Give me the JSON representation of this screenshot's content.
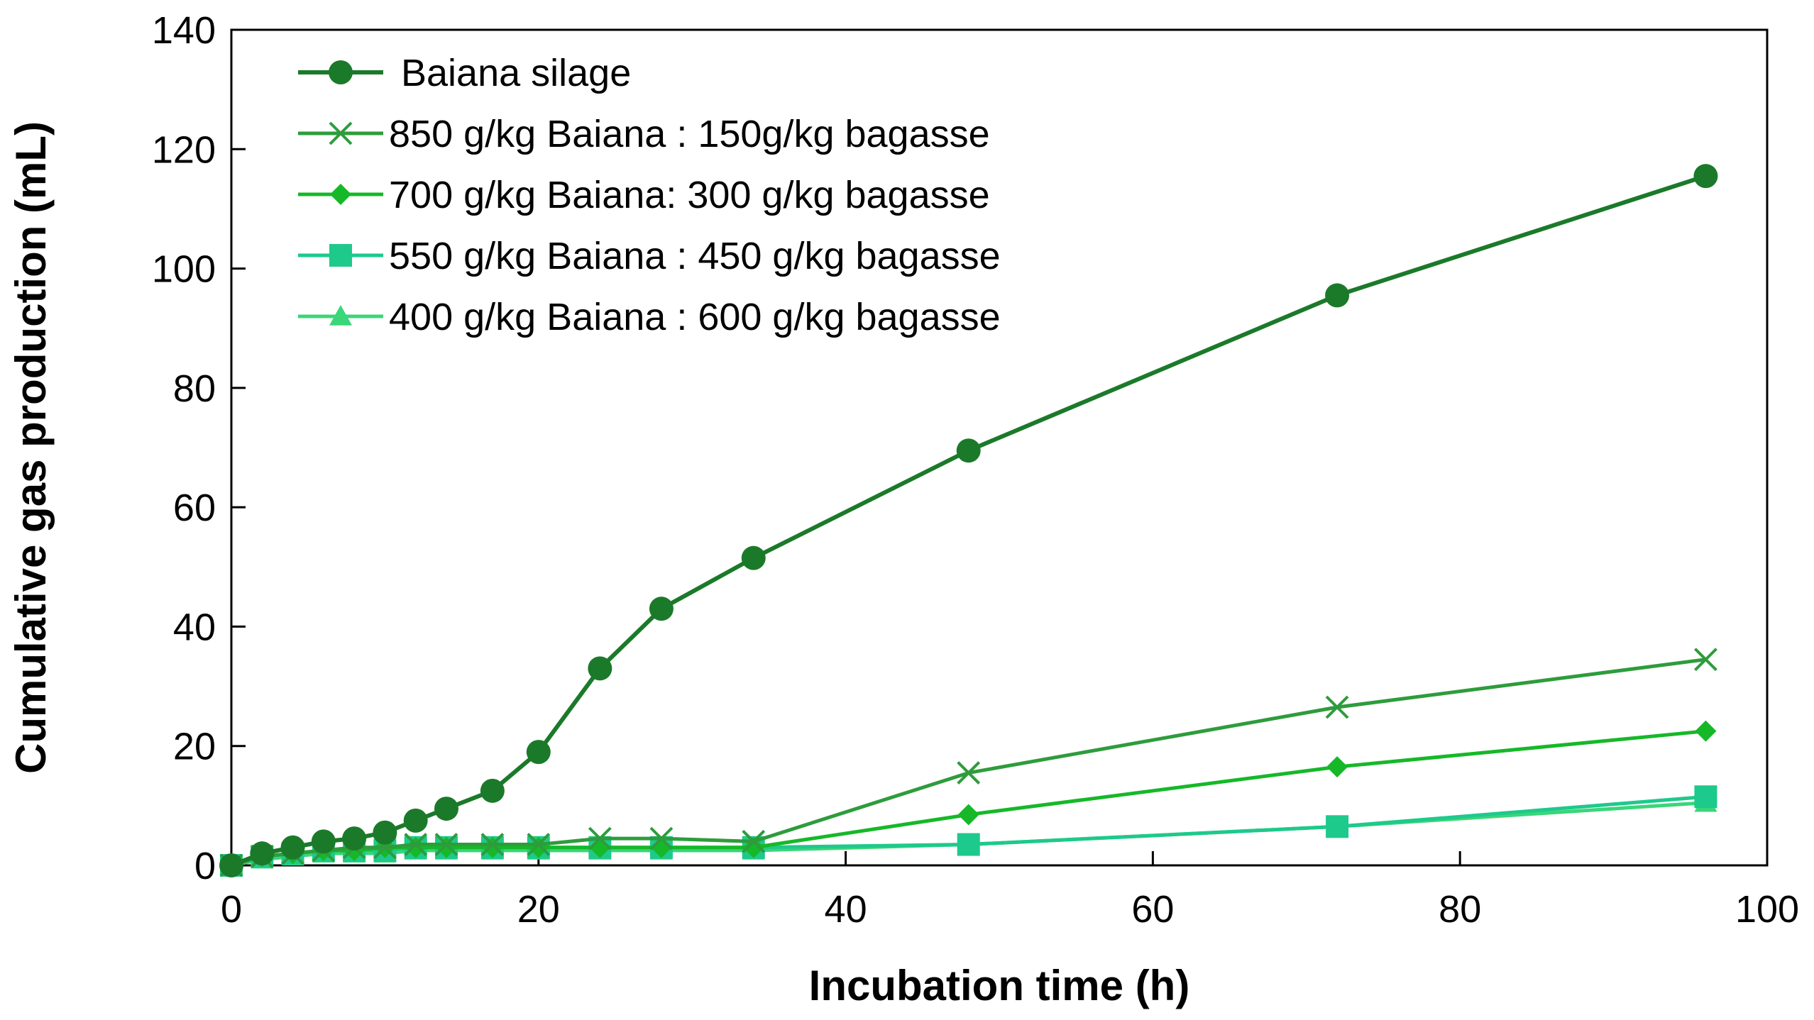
{
  "chart_data": {
    "type": "line",
    "title": "",
    "xlabel": "Incubation time (h)",
    "ylabel": "Cumulative gas production (mL)",
    "xlim": [
      0,
      100
    ],
    "ylim": [
      0,
      140
    ],
    "xticks": [
      "0",
      "20",
      "40",
      "60",
      "80",
      "100"
    ],
    "yticks": [
      "0",
      "20",
      "40",
      "60",
      "80",
      "100",
      "120",
      "140"
    ],
    "grid": false,
    "legend_position": "top-left",
    "series": [
      {
        "name": "Baiana silage",
        "color": "#1b7a2a",
        "marker": "circle",
        "x": [
          0,
          2,
          4,
          6,
          8,
          10,
          12,
          14,
          17,
          20,
          24,
          28,
          34,
          48,
          72,
          96
        ],
        "y": [
          0,
          2,
          3,
          4,
          4.5,
          5.5,
          7.5,
          9.5,
          12.5,
          19,
          33,
          43,
          51.5,
          69.5,
          95.5,
          115.5
        ]
      },
      {
        "name": "850 g/kg Baiana : 150g/kg bagasse",
        "color": "#2e9c3c",
        "marker": "cross",
        "x": [
          0,
          2,
          4,
          6,
          8,
          10,
          12,
          14,
          17,
          20,
          24,
          28,
          34,
          48,
          72,
          96
        ],
        "y": [
          0,
          1.5,
          2,
          2.5,
          3,
          3,
          3.5,
          3.5,
          3.5,
          3.5,
          4.5,
          4.5,
          4,
          15.5,
          26.5,
          34.5
        ]
      },
      {
        "name": "700 g/kg Baiana: 300 g/kg bagasse",
        "color": "#16b828",
        "marker": "diamond",
        "x": [
          0,
          2,
          4,
          6,
          8,
          10,
          12,
          14,
          17,
          20,
          24,
          28,
          34,
          48,
          72,
          96
        ],
        "y": [
          0,
          1.5,
          2,
          2.5,
          2.5,
          3,
          3,
          3,
          3,
          3,
          3,
          3,
          3,
          8.5,
          16.5,
          22.5
        ]
      },
      {
        "name": "550 g/kg Baiana : 450 g/kg bagasse",
        "color": "#1ec98c",
        "marker": "square",
        "x": [
          0,
          2,
          4,
          6,
          8,
          10,
          12,
          14,
          17,
          20,
          24,
          28,
          34,
          48,
          72,
          96
        ],
        "y": [
          0,
          1.5,
          2,
          2.5,
          2.5,
          2.5,
          3,
          3,
          3,
          3,
          3,
          3,
          3,
          3.5,
          6.5,
          11.5
        ]
      },
      {
        "name": "400 g/kg Baiana : 600 g/kg bagasse",
        "color": "#3ad67a",
        "marker": "triangle",
        "x": [
          0,
          2,
          4,
          6,
          8,
          10,
          12,
          14,
          17,
          20,
          24,
          28,
          34,
          48,
          72,
          96
        ],
        "y": [
          0,
          1,
          1.5,
          2,
          2,
          2,
          2.5,
          2.5,
          2.5,
          2.5,
          2.5,
          2.5,
          2.5,
          3.5,
          6.5,
          10.5
        ]
      }
    ]
  }
}
